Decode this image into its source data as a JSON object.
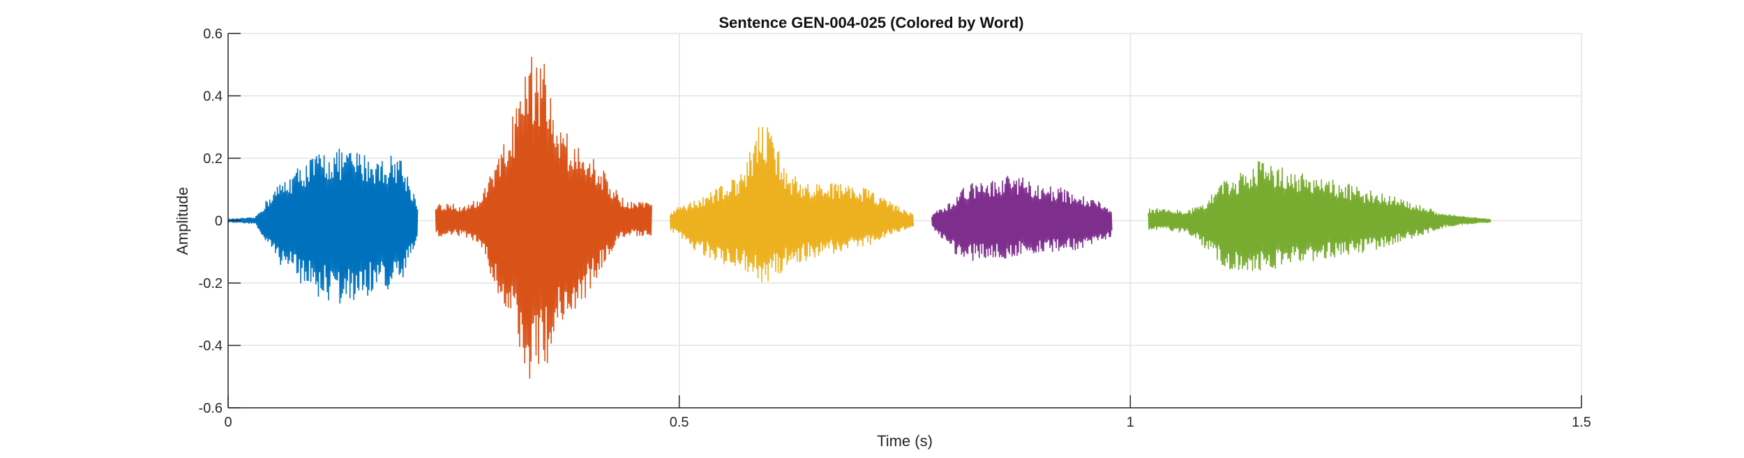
{
  "chart_data": {
    "type": "line",
    "title": "Sentence GEN-004-025 (Colored by Word)",
    "xlabel": "Time (s)",
    "ylabel": "Amplitude",
    "xlim": [
      0,
      1.5
    ],
    "ylim": [
      -0.6,
      0.6
    ],
    "xticks": [
      0,
      0.5,
      1,
      1.5
    ],
    "xtick_labels": [
      "0",
      "0.5",
      "1",
      "1.5"
    ],
    "yticks": [
      -0.6,
      -0.4,
      -0.2,
      0,
      0.2,
      0.4,
      0.6
    ],
    "ytick_labels": [
      "-0.6",
      "-0.4",
      "-0.2",
      "0",
      "0.2",
      "0.4",
      "0.6"
    ],
    "grid": true,
    "series": [
      {
        "color": "#0072BD",
        "x": [
          0.0,
          0.03,
          0.05,
          0.08,
          0.1,
          0.12,
          0.13,
          0.15,
          0.17,
          0.19,
          0.21
        ],
        "envelope_max": [
          0.005,
          0.01,
          0.1,
          0.18,
          0.22,
          0.23,
          0.23,
          0.22,
          0.2,
          0.22,
          0.06
        ],
        "envelope_min": [
          -0.005,
          -0.01,
          -0.12,
          -0.2,
          -0.25,
          -0.27,
          -0.28,
          -0.25,
          -0.22,
          -0.23,
          -0.06
        ]
      },
      {
        "color": "#D95319",
        "x": [
          0.23,
          0.26,
          0.28,
          0.3,
          0.32,
          0.34,
          0.35,
          0.37,
          0.4,
          0.42,
          0.44,
          0.47
        ],
        "envelope_max": [
          0.06,
          0.05,
          0.08,
          0.2,
          0.38,
          0.56,
          0.52,
          0.3,
          0.22,
          0.15,
          0.06,
          0.06
        ],
        "envelope_min": [
          -0.05,
          -0.05,
          -0.08,
          -0.25,
          -0.4,
          -0.55,
          -0.5,
          -0.35,
          -0.24,
          -0.12,
          -0.05,
          -0.05
        ]
      },
      {
        "color": "#EDB120",
        "x": [
          0.49,
          0.51,
          0.53,
          0.55,
          0.57,
          0.59,
          0.6,
          0.62,
          0.65,
          0.68,
          0.71,
          0.74,
          0.76
        ],
        "envelope_max": [
          0.03,
          0.06,
          0.08,
          0.12,
          0.15,
          0.32,
          0.3,
          0.15,
          0.12,
          0.12,
          0.1,
          0.05,
          0.02
        ],
        "envelope_min": [
          -0.03,
          -0.08,
          -0.12,
          -0.15,
          -0.15,
          -0.2,
          -0.2,
          -0.15,
          -0.12,
          -0.1,
          -0.08,
          -0.04,
          -0.02
        ]
      },
      {
        "color": "#7E2F8E",
        "x": [
          0.78,
          0.8,
          0.82,
          0.85,
          0.87,
          0.9,
          0.93,
          0.96,
          0.98
        ],
        "envelope_max": [
          0.02,
          0.06,
          0.12,
          0.13,
          0.15,
          0.12,
          0.1,
          0.07,
          0.04
        ],
        "envelope_min": [
          -0.02,
          -0.1,
          -0.13,
          -0.12,
          -0.12,
          -0.1,
          -0.1,
          -0.08,
          -0.05
        ]
      },
      {
        "color": "#77AC30",
        "x": [
          1.02,
          1.04,
          1.06,
          1.08,
          1.1,
          1.13,
          1.15,
          1.17,
          1.2,
          1.23,
          1.26,
          1.29,
          1.32,
          1.35,
          1.38,
          1.4
        ],
        "envelope_max": [
          0.04,
          0.04,
          0.03,
          0.05,
          0.13,
          0.16,
          0.21,
          0.17,
          0.15,
          0.13,
          0.1,
          0.08,
          0.05,
          0.02,
          0.01,
          0.005
        ],
        "envelope_min": [
          -0.03,
          -0.03,
          -0.04,
          -0.08,
          -0.15,
          -0.17,
          -0.16,
          -0.15,
          -0.13,
          -0.12,
          -0.1,
          -0.08,
          -0.05,
          -0.02,
          -0.01,
          -0.005
        ]
      }
    ]
  }
}
